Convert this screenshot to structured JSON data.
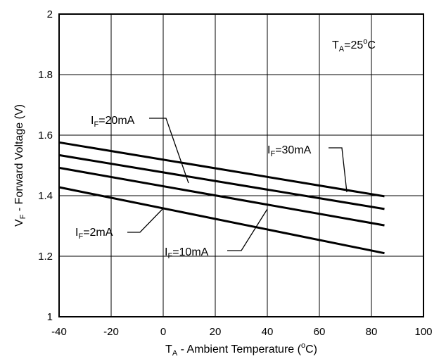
{
  "chart_data": {
    "type": "line",
    "x_axis": {
      "title_main": "T",
      "title_sub": "A",
      "title_rest": " - Ambient Temperature (",
      "title_sup": "o",
      "title_end": "C)",
      "range": [
        -40,
        100
      ],
      "ticks": [
        "-40",
        "-20",
        "0",
        "20",
        "40",
        "60",
        "80",
        "100"
      ]
    },
    "y_axis": {
      "title_main": "V",
      "title_sub": "F",
      "title_rest": " - Forward Voltage (V)",
      "range": [
        1.0,
        2.0
      ],
      "ticks": [
        "1",
        "1.2",
        "1.4",
        "1.6",
        "1.8",
        "2"
      ]
    },
    "grid": true,
    "condition": {
      "main": "T",
      "sub": "A",
      "rest": "=25",
      "sup": "o",
      "end": "C"
    },
    "series": [
      {
        "name": "I_F=30mA",
        "label_main": "I",
        "label_sub": "F",
        "label_rest": "=30mA",
        "x": [
          -40,
          85
        ],
        "y": [
          1.576,
          1.398
        ]
      },
      {
        "name": "I_F=20mA",
        "label_main": "I",
        "label_sub": "F",
        "label_rest": "=20mA",
        "x": [
          -40,
          85
        ],
        "y": [
          1.534,
          1.356
        ]
      },
      {
        "name": "I_F=10mA",
        "label_main": "I",
        "label_sub": "F",
        "label_rest": "=10mA",
        "x": [
          -40,
          85
        ],
        "y": [
          1.492,
          1.302
        ]
      },
      {
        "name": "I_F=2mA",
        "label_main": "I",
        "label_sub": "F",
        "label_rest": "=2mA",
        "x": [
          -40,
          85
        ],
        "y": [
          1.428,
          1.21
        ]
      }
    ]
  }
}
